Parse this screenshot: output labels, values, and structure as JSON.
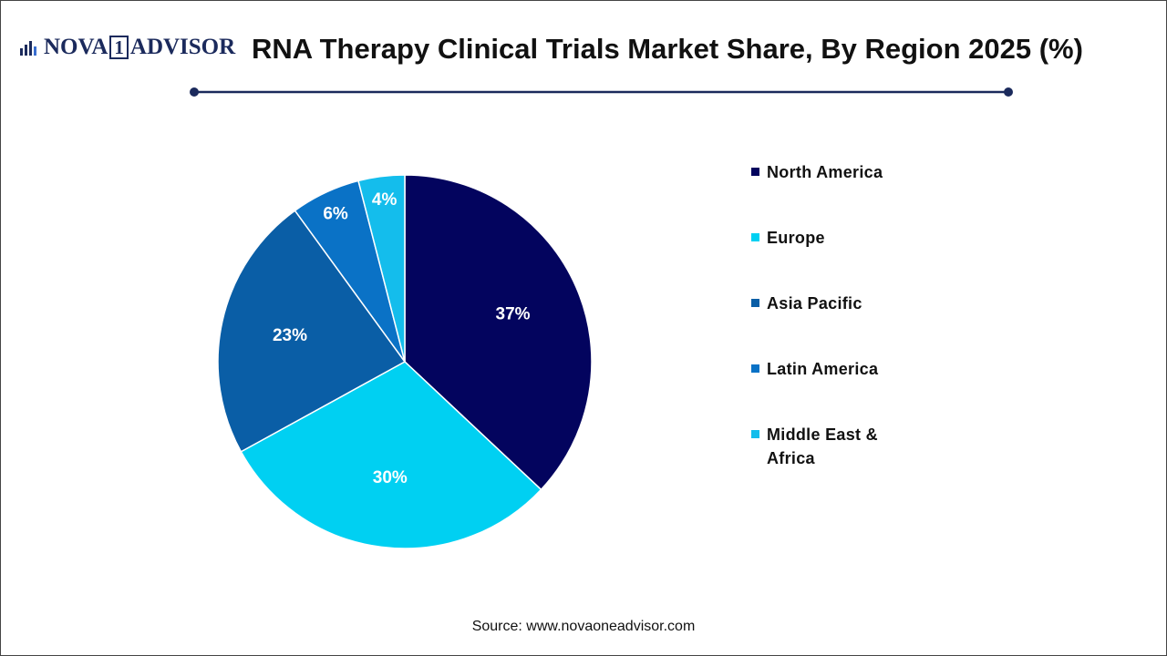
{
  "logo": {
    "left": "NOVA",
    "mark": "1",
    "right": "ADVISOR"
  },
  "chart_data": {
    "type": "pie",
    "title": "RNA Therapy Clinical Trials Market Share, By Region 2025 (%)",
    "categories": [
      "North America",
      "Europe",
      "Asia Pacific",
      "Latin America",
      "Middle East & Africa"
    ],
    "values": [
      37,
      30,
      23,
      6,
      4
    ],
    "value_labels": [
      "37%",
      "30%",
      "23%",
      "6%",
      "4%"
    ],
    "colors": [
      "#03045e",
      "#00d0f2",
      "#0a5ea6",
      "#0a72c6",
      "#14bdec"
    ],
    "legend": "right",
    "source": "Source: www.novaoneadvisor.com"
  }
}
